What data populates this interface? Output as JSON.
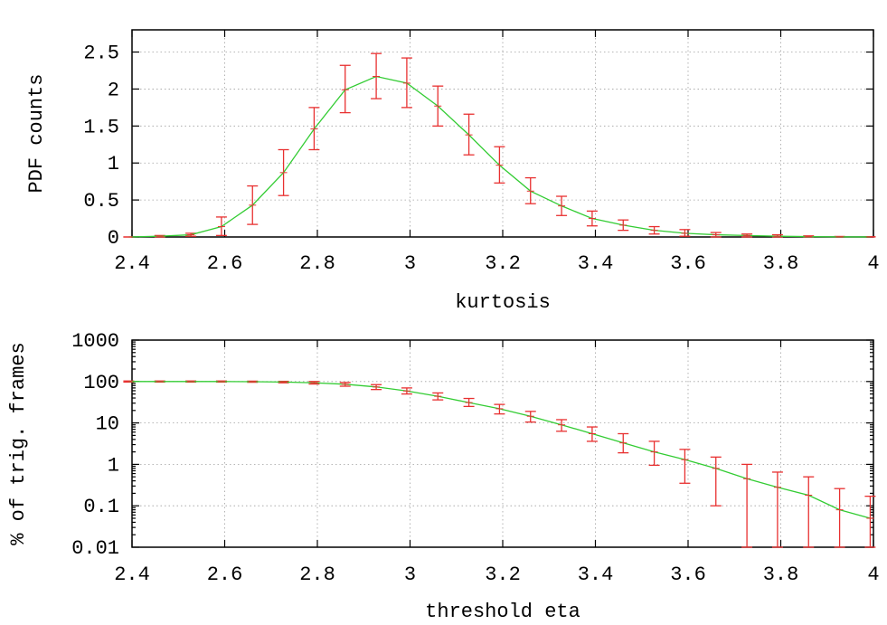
{
  "colors": {
    "curve": "#33cc33",
    "errorbar": "#e83030",
    "axes": "#000000",
    "grid": "#a0a0a0"
  },
  "chart_data": [
    {
      "type": "line",
      "title": "",
      "xlabel": "kurtosis",
      "ylabel": "PDF counts",
      "xlim": [
        2.4,
        4
      ],
      "ylim": [
        0,
        2.8
      ],
      "yscale": "linear",
      "grid": true,
      "xticks": [
        2.4,
        2.6,
        2.8,
        3,
        3.2,
        3.4,
        3.6,
        3.8,
        4
      ],
      "xtick_labels": [
        "2.4",
        "2.6",
        "2.8",
        "3",
        "3.2",
        "3.4",
        "3.6",
        "3.8",
        "4"
      ],
      "yticks": [
        0,
        0.5,
        1,
        1.5,
        2,
        2.5
      ],
      "ytick_labels": [
        "0",
        "0.5",
        "1",
        "1.5",
        "2",
        "2.5"
      ],
      "series": [
        {
          "x": [
            2.393,
            2.46,
            2.527,
            2.593,
            2.66,
            2.727,
            2.793,
            2.86,
            2.927,
            2.993,
            3.06,
            3.127,
            3.193,
            3.26,
            3.327,
            3.393,
            3.46,
            3.527,
            3.593,
            3.66,
            3.727,
            3.793,
            3.86,
            3.927,
            3.993
          ],
          "y": [
            0.0,
            0.01,
            0.03,
            0.14,
            0.43,
            0.87,
            1.46,
            1.99,
            2.17,
            2.08,
            1.77,
            1.38,
            0.97,
            0.62,
            0.42,
            0.25,
            0.16,
            0.09,
            0.05,
            0.03,
            0.02,
            0.01,
            0.005,
            0.002,
            0.001
          ],
          "yerr_low": [
            0.0,
            0.01,
            0.02,
            0.12,
            0.26,
            0.31,
            0.28,
            0.31,
            0.3,
            0.33,
            0.27,
            0.27,
            0.24,
            0.17,
            0.13,
            0.1,
            0.07,
            0.05,
            0.04,
            0.03,
            0.02,
            0.01,
            0.005,
            0.002,
            0.001
          ],
          "yerr_high": [
            0.0,
            0.01,
            0.02,
            0.13,
            0.26,
            0.31,
            0.29,
            0.33,
            0.31,
            0.34,
            0.27,
            0.28,
            0.25,
            0.18,
            0.13,
            0.1,
            0.07,
            0.05,
            0.05,
            0.03,
            0.02,
            0.02,
            0.01,
            0.005,
            0.002
          ]
        }
      ]
    },
    {
      "type": "line",
      "title": "",
      "xlabel": "threshold eta",
      "ylabel": "% of trig. frames",
      "xlim": [
        2.4,
        4
      ],
      "ylim": [
        0.01,
        1000
      ],
      "yscale": "log",
      "grid": true,
      "xticks": [
        2.4,
        2.6,
        2.8,
        3,
        3.2,
        3.4,
        3.6,
        3.8,
        4
      ],
      "xtick_labels": [
        "2.4",
        "2.6",
        "2.8",
        "3",
        "3.2",
        "3.4",
        "3.6",
        "3.8",
        "4"
      ],
      "yticks": [
        0.01,
        0.1,
        1,
        10,
        100,
        1000
      ],
      "ytick_labels": [
        "0.01",
        "0.1",
        "1",
        "10",
        "100",
        "1000"
      ],
      "series": [
        {
          "x": [
            2.393,
            2.46,
            2.527,
            2.593,
            2.66,
            2.727,
            2.793,
            2.86,
            2.927,
            2.993,
            3.06,
            3.127,
            3.193,
            3.26,
            3.327,
            3.393,
            3.46,
            3.527,
            3.593,
            3.66,
            3.727,
            3.793,
            3.86,
            3.927,
            3.993
          ],
          "y": [
            100,
            100,
            100,
            100,
            99,
            97,
            93,
            86,
            74,
            59,
            44,
            31,
            22,
            14.5,
            9,
            5.5,
            3.3,
            2.0,
            1.3,
            0.8,
            0.45,
            0.28,
            0.18,
            0.08,
            0.05
          ],
          "y_lower": [
            97,
            97,
            97,
            97,
            96,
            93,
            87,
            77,
            64,
            50,
            36,
            25,
            16.5,
            10.5,
            6.3,
            3.6,
            1.9,
            0.95,
            0.35,
            0.1,
            0.01,
            0.01,
            0.01,
            0.01,
            0.01
          ],
          "y_upper": [
            103,
            103,
            103,
            103,
            102,
            101,
            100,
            95,
            84,
            70,
            53,
            39,
            28,
            19,
            12,
            8,
            5.5,
            3.6,
            2.3,
            1.5,
            1.0,
            0.65,
            0.5,
            0.26,
            0.17
          ]
        }
      ]
    }
  ]
}
